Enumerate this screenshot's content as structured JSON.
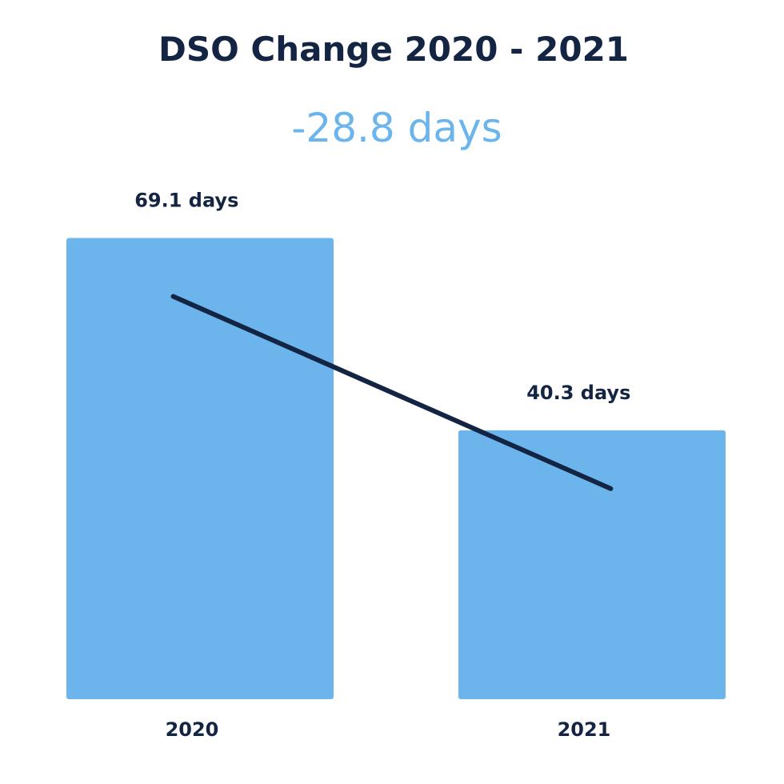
{
  "colors": {
    "bar": "#6bb5ec",
    "text": "#142544",
    "accent_text": "#6bb5ec",
    "line": "#142544",
    "background": "#ffffff"
  },
  "chart_data": {
    "type": "bar",
    "title": "DSO Change 2020 - 2021",
    "subtitle": "-28.8 days",
    "categories": [
      "2020",
      "2021"
    ],
    "values": [
      69.1,
      40.3
    ],
    "data_labels": [
      "69.1 days",
      "40.3 days"
    ],
    "unit": "days",
    "ylim": [
      0,
      76
    ],
    "trend_line": true,
    "grid": false,
    "legend": "none"
  }
}
